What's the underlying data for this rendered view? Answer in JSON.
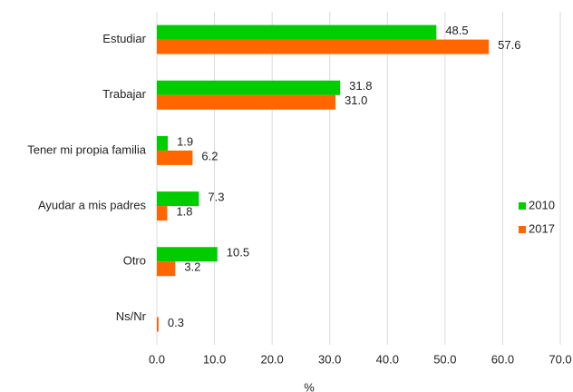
{
  "chart_data": {
    "type": "hbar",
    "categories": [
      "Estudiar",
      "Trabajar",
      "Tener mi propia familia",
      "Ayudar a mis padres",
      "Otro",
      "Ns/Nr"
    ],
    "series": [
      {
        "name": "2010",
        "color": "#00cc00",
        "values": [
          48.5,
          31.8,
          1.9,
          7.3,
          10.5,
          null
        ],
        "value_labels": [
          "48.5",
          "31.8",
          "1.9",
          "7.3",
          "10.5",
          null
        ]
      },
      {
        "name": "2017",
        "color": "#ff6600",
        "values": [
          57.6,
          31.0,
          6.2,
          1.8,
          3.2,
          0.3
        ],
        "value_labels": [
          "57.6",
          "31.0",
          "6.2",
          "1.8",
          "3.2",
          "0.3"
        ]
      }
    ],
    "xlabel": "%",
    "xlim": [
      0,
      70
    ],
    "xticks": [
      {
        "value": 0,
        "label": "0.0"
      },
      {
        "value": 10,
        "label": "10.0"
      },
      {
        "value": 20,
        "label": "20.0"
      },
      {
        "value": 30,
        "label": "30.0"
      },
      {
        "value": 40,
        "label": "40.0"
      },
      {
        "value": 50,
        "label": "50.0"
      },
      {
        "value": 60,
        "label": "60.0"
      },
      {
        "value": 70,
        "label": "70.0"
      }
    ],
    "grid": true,
    "legend": "right"
  }
}
